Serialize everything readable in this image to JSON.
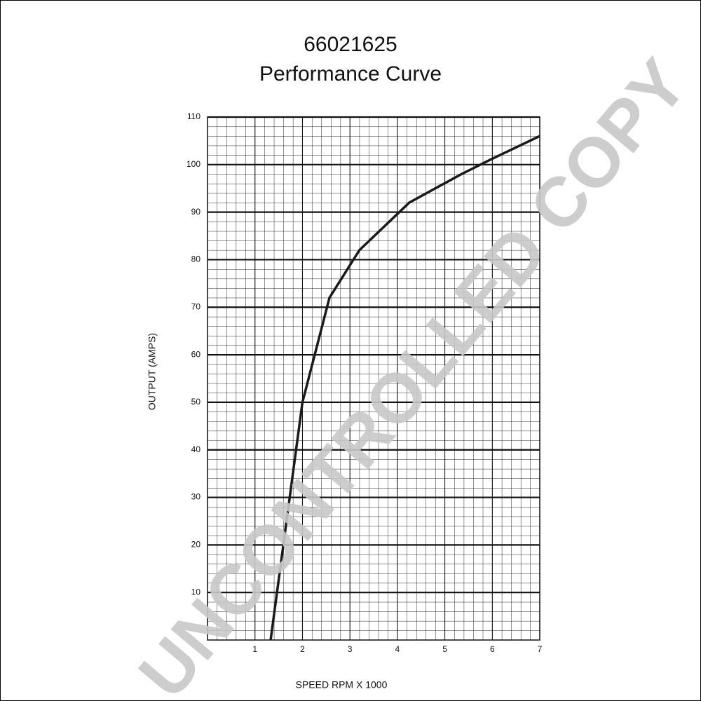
{
  "chart_data": {
    "type": "line",
    "title": "66021625",
    "subtitle": "Performance Curve",
    "x_label": "SPEED RPM X 1000",
    "y_label": "OUTPUT (AMPS)",
    "watermark": "UNCONTROLLED COPY",
    "x": [
      1.33,
      2,
      2.57,
      3.2,
      4.25,
      5.35,
      5.95,
      7
    ],
    "series": [
      {
        "color": "#1a1a1a",
        "values": [
          0,
          50,
          72,
          82,
          92,
          98,
          101,
          106
        ]
      }
    ],
    "xlim": [
      0,
      7
    ],
    "xticks": [
      1,
      2,
      3,
      4,
      5,
      6,
      7
    ],
    "ylim": [
      0,
      110
    ],
    "yticks": [
      10,
      20,
      30,
      40,
      50,
      60,
      70,
      80,
      90,
      100,
      110
    ],
    "grid": true
  }
}
